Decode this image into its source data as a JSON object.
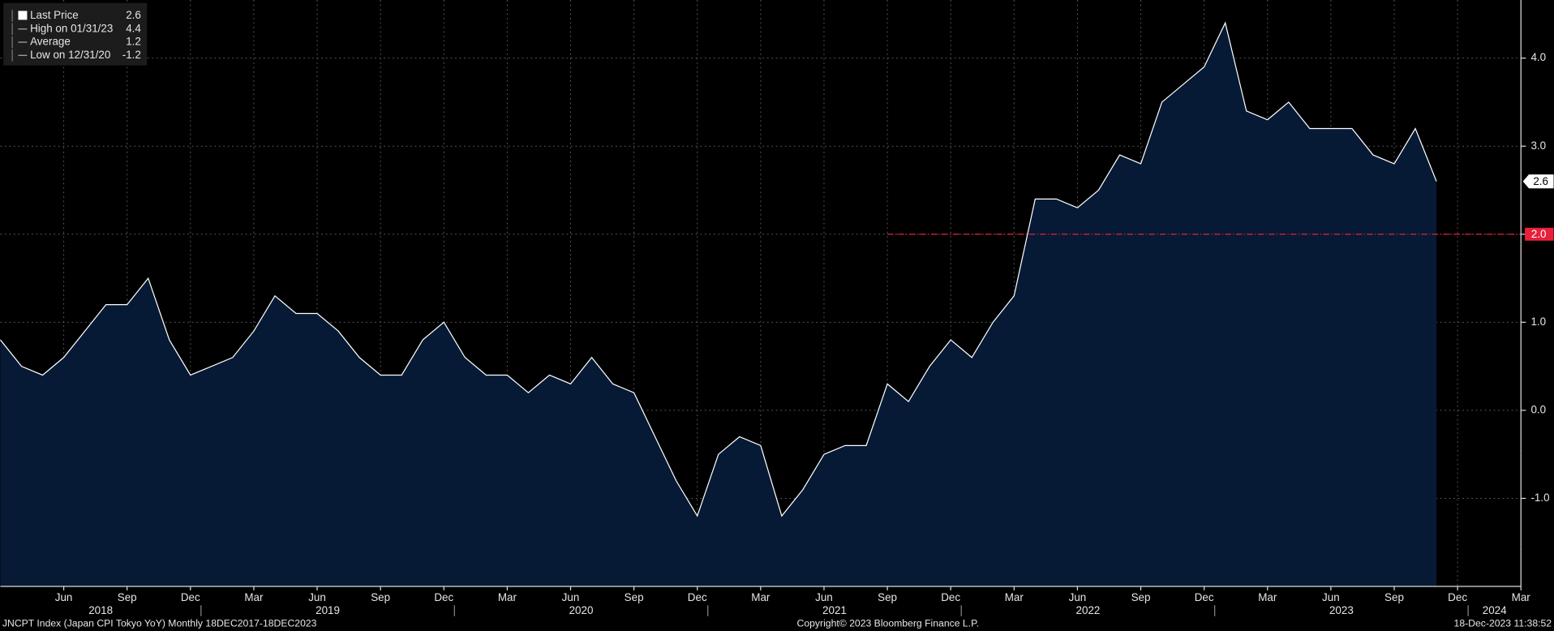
{
  "chart_data": {
    "type": "area",
    "x": [
      "2018-03",
      "2018-04",
      "2018-05",
      "2018-06",
      "2018-07",
      "2018-08",
      "2018-09",
      "2018-10",
      "2018-11",
      "2018-12",
      "2019-01",
      "2019-02",
      "2019-03",
      "2019-04",
      "2019-05",
      "2019-06",
      "2019-07",
      "2019-08",
      "2019-09",
      "2019-10",
      "2019-11",
      "2019-12",
      "2020-01",
      "2020-02",
      "2020-03",
      "2020-04",
      "2020-05",
      "2020-06",
      "2020-07",
      "2020-08",
      "2020-09",
      "2020-10",
      "2020-11",
      "2020-12",
      "2021-01",
      "2021-02",
      "2021-03",
      "2021-04",
      "2021-05",
      "2021-06",
      "2021-07",
      "2021-08",
      "2021-09",
      "2021-10",
      "2021-11",
      "2021-12",
      "2022-01",
      "2022-02",
      "2022-03",
      "2022-04",
      "2022-05",
      "2022-06",
      "2022-07",
      "2022-08",
      "2022-09",
      "2022-10",
      "2022-11",
      "2022-12",
      "2023-01",
      "2023-02",
      "2023-03",
      "2023-04",
      "2023-05",
      "2023-06",
      "2023-07",
      "2023-08",
      "2023-09",
      "2023-10",
      "2023-11"
    ],
    "series": [
      {
        "name": "Last Price",
        "color": "#ffffff",
        "fill": "#061a35",
        "values": [
          0.8,
          0.5,
          0.4,
          0.6,
          0.9,
          1.2,
          1.2,
          1.5,
          0.8,
          0.4,
          0.5,
          0.6,
          0.9,
          1.3,
          1.1,
          1.1,
          0.9,
          0.6,
          0.4,
          0.4,
          0.8,
          1.0,
          0.6,
          0.4,
          0.4,
          0.2,
          0.4,
          0.3,
          0.6,
          0.3,
          0.2,
          -0.3,
          -0.8,
          -1.2,
          -0.5,
          -0.3,
          -0.4,
          -1.2,
          -0.9,
          -0.5,
          -0.4,
          -0.4,
          0.3,
          0.1,
          0.5,
          0.8,
          0.6,
          1.0,
          1.3,
          2.4,
          2.4,
          2.3,
          2.5,
          2.9,
          2.8,
          3.5,
          3.7,
          3.9,
          4.4,
          3.4,
          3.3,
          3.5,
          3.2,
          3.2,
          3.2,
          2.9,
          2.8,
          3.2,
          2.6
        ]
      }
    ],
    "xlim": [
      "2018-03",
      "2024-03"
    ],
    "xticks": [
      {
        "value": "2018-06",
        "label": "Jun"
      },
      {
        "value": "2018-09",
        "label": "Sep"
      },
      {
        "value": "2018-12",
        "label": "Dec"
      },
      {
        "value": "2019-03",
        "label": "Mar"
      },
      {
        "value": "2019-06",
        "label": "Jun"
      },
      {
        "value": "2019-09",
        "label": "Sep"
      },
      {
        "value": "2019-12",
        "label": "Dec"
      },
      {
        "value": "2020-03",
        "label": "Mar"
      },
      {
        "value": "2020-06",
        "label": "Jun"
      },
      {
        "value": "2020-09",
        "label": "Sep"
      },
      {
        "value": "2020-12",
        "label": "Dec"
      },
      {
        "value": "2021-03",
        "label": "Mar"
      },
      {
        "value": "2021-06",
        "label": "Jun"
      },
      {
        "value": "2021-09",
        "label": "Sep"
      },
      {
        "value": "2021-12",
        "label": "Dec"
      },
      {
        "value": "2022-03",
        "label": "Mar"
      },
      {
        "value": "2022-06",
        "label": "Jun"
      },
      {
        "value": "2022-09",
        "label": "Sep"
      },
      {
        "value": "2022-12",
        "label": "Dec"
      },
      {
        "value": "2023-03",
        "label": "Mar"
      },
      {
        "value": "2023-06",
        "label": "Jun"
      },
      {
        "value": "2023-09",
        "label": "Sep"
      },
      {
        "value": "2023-12",
        "label": "Dec"
      },
      {
        "value": "2024-03",
        "label": "Mar"
      }
    ],
    "year_labels": [
      "2018",
      "2019",
      "2020",
      "2021",
      "2022",
      "2023",
      "2024"
    ],
    "ylim": [
      -2.0,
      4.66
    ],
    "yticks": [
      {
        "value": -1,
        "label": "-1.0"
      },
      {
        "value": 0,
        "label": "0.0"
      },
      {
        "value": 1,
        "label": "1.0"
      },
      {
        "value": 2,
        "label": "2.0"
      },
      {
        "value": 3,
        "label": "3.0"
      },
      {
        "value": 4,
        "label": "4.0"
      }
    ],
    "grid": true,
    "ref_line": {
      "value": 2,
      "label": "2.0",
      "color": "#e8203c",
      "start": "2021-09"
    },
    "legend": [
      {
        "label": "Last Price",
        "value": 2.6
      },
      {
        "label": "High on 01/31/23",
        "value": 4.4
      },
      {
        "label": "Average",
        "value": 1.2
      },
      {
        "label": "Low on 12/31/20",
        "value": -1.2
      }
    ]
  },
  "footer": {
    "left": "JNCPT Index (Japan CPI Tokyo YoY)  Monthly 18DEC2017-18DEC2023",
    "center": "Copyright© 2023 Bloomberg Finance L.P.",
    "right": "18-Dec-2023 11:38:52"
  }
}
